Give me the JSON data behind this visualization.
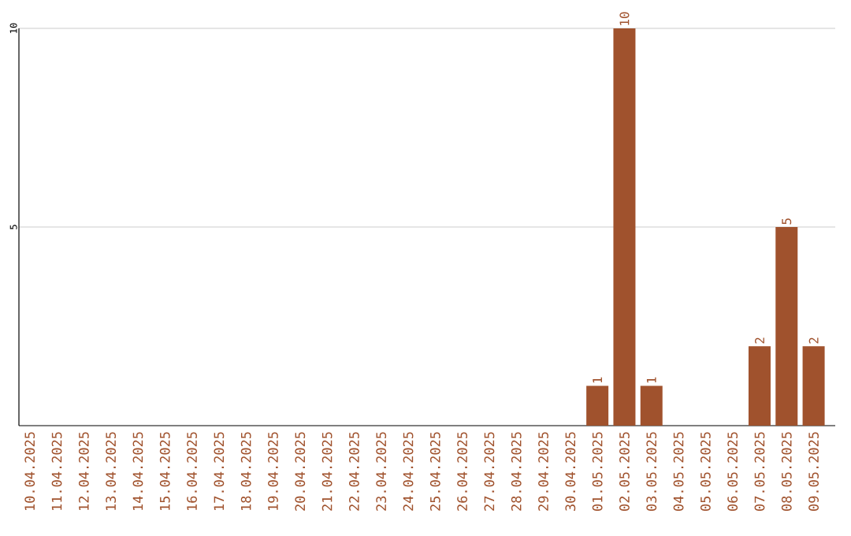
{
  "chart_data": {
    "type": "bar",
    "categories": [
      "10.04.2025",
      "11.04.2025",
      "12.04.2025",
      "13.04.2025",
      "14.04.2025",
      "15.04.2025",
      "16.04.2025",
      "17.04.2025",
      "18.04.2025",
      "19.04.2025",
      "20.04.2025",
      "21.04.2025",
      "22.04.2025",
      "23.04.2025",
      "24.04.2025",
      "25.04.2025",
      "26.04.2025",
      "27.04.2025",
      "28.04.2025",
      "29.04.2025",
      "30.04.2025",
      "01.05.2025",
      "02.05.2025",
      "03.05.2025",
      "04.05.2025",
      "05.05.2025",
      "06.05.2025",
      "07.05.2025",
      "08.05.2025",
      "09.05.2025"
    ],
    "values": [
      0,
      0,
      0,
      0,
      0,
      0,
      0,
      0,
      0,
      0,
      0,
      0,
      0,
      0,
      0,
      0,
      0,
      0,
      0,
      0,
      0,
      1,
      10,
      1,
      0,
      0,
      0,
      2,
      5,
      2
    ],
    "value_labels": [
      null,
      null,
      null,
      null,
      null,
      null,
      null,
      null,
      null,
      null,
      null,
      null,
      null,
      null,
      null,
      null,
      null,
      null,
      null,
      null,
      null,
      "1",
      "10",
      "1",
      null,
      null,
      null,
      "2",
      "5",
      "2"
    ],
    "color": "#a0522d",
    "ylim": [
      0,
      10
    ],
    "yticks": [
      5,
      10
    ],
    "grid": "y"
  }
}
